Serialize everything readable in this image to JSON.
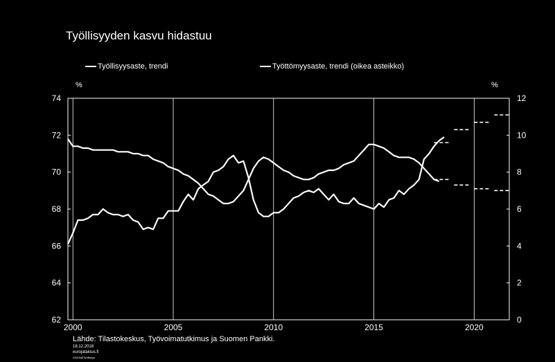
{
  "title": "Työllisyyden kasvu hidastuu",
  "legend": {
    "series1": "Työllisyysaste, trendi",
    "series2": "Työttömyysaste, trendi (oikea asteikko)"
  },
  "units": {
    "left": "%",
    "right": "%"
  },
  "footer": {
    "source": "Lähde: Tilastokeskus, Työvoimatutkimus ja Suomen Pankki.",
    "date": "18.12.2018",
    "site": "eurojatalous.fi",
    "ref": "24515@Työllisyys"
  },
  "chart_data": {
    "type": "line",
    "xlim": [
      1999.75,
      2021.75
    ],
    "ylim_left": [
      62,
      74
    ],
    "ylim_right": [
      0,
      12
    ],
    "x_ticks": [
      "2000",
      "2005",
      "2010",
      "2015",
      "2020"
    ],
    "x_tick_values": [
      2000,
      2005,
      2010,
      2015,
      2020
    ],
    "y_left_ticks": [
      "62",
      "64",
      "66",
      "68",
      "70",
      "72",
      "74"
    ],
    "y_right_ticks": [
      "0",
      "2",
      "4",
      "6",
      "8",
      "10",
      "12"
    ],
    "grid": "vertical at 2000, 2005, 2010, 2015, 2020",
    "series": [
      {
        "name": "Työllisyysaste, trendi",
        "axis": "left",
        "x": [
          1999.75,
          2000.0,
          2000.25,
          2000.5,
          2000.75,
          2001.0,
          2001.25,
          2001.5,
          2001.75,
          2002.0,
          2002.25,
          2002.5,
          2002.75,
          2003.0,
          2003.25,
          2003.5,
          2003.75,
          2004.0,
          2004.25,
          2004.5,
          2004.75,
          2005.0,
          2005.25,
          2005.5,
          2005.75,
          2006.0,
          2006.25,
          2006.5,
          2006.75,
          2007.0,
          2007.25,
          2007.5,
          2007.75,
          2008.0,
          2008.25,
          2008.5,
          2008.75,
          2009.0,
          2009.25,
          2009.5,
          2009.75,
          2010.0,
          2010.25,
          2010.5,
          2010.75,
          2011.0,
          2011.25,
          2011.5,
          2011.75,
          2012.0,
          2012.25,
          2012.5,
          2012.75,
          2013.0,
          2013.25,
          2013.5,
          2013.75,
          2014.0,
          2014.25,
          2014.5,
          2014.75,
          2015.0,
          2015.25,
          2015.5,
          2015.75,
          2016.0,
          2016.25,
          2016.5,
          2016.75,
          2017.0,
          2017.25,
          2017.5,
          2017.75,
          2018.0,
          2018.25,
          2018.5
        ],
        "y": [
          66.1,
          66.7,
          67.4,
          67.4,
          67.5,
          67.7,
          67.7,
          68.0,
          67.8,
          67.7,
          67.7,
          67.6,
          67.7,
          67.4,
          67.3,
          66.9,
          67.0,
          66.9,
          67.5,
          67.5,
          67.9,
          67.9,
          67.9,
          68.4,
          68.8,
          68.5,
          69.1,
          69.3,
          69.5,
          70.0,
          70.1,
          70.3,
          70.7,
          70.9,
          70.5,
          70.6,
          69.7,
          68.5,
          67.8,
          67.6,
          67.6,
          67.8,
          67.8,
          68.0,
          68.3,
          68.6,
          68.7,
          68.9,
          69.0,
          68.9,
          69.1,
          68.8,
          68.5,
          68.8,
          68.4,
          68.3,
          68.3,
          68.6,
          68.3,
          68.2,
          68.1,
          68.0,
          68.3,
          68.1,
          68.5,
          68.6,
          69.0,
          68.8,
          69.1,
          69.3,
          69.6,
          70.7,
          71.0,
          71.4,
          71.7,
          71.9
        ]
      },
      {
        "name": "Työttömyysaste, trendi (oikea asteikko)",
        "axis": "right",
        "x": [
          1999.75,
          2000.0,
          2000.25,
          2000.5,
          2000.75,
          2001.0,
          2001.25,
          2001.5,
          2001.75,
          2002.0,
          2002.25,
          2002.5,
          2002.75,
          2003.0,
          2003.25,
          2003.5,
          2003.75,
          2004.0,
          2004.25,
          2004.5,
          2004.75,
          2005.0,
          2005.25,
          2005.5,
          2005.75,
          2006.0,
          2006.25,
          2006.5,
          2006.75,
          2007.0,
          2007.25,
          2007.5,
          2007.75,
          2008.0,
          2008.25,
          2008.5,
          2008.75,
          2009.0,
          2009.25,
          2009.5,
          2009.75,
          2010.0,
          2010.25,
          2010.5,
          2010.75,
          2011.0,
          2011.25,
          2011.5,
          2011.75,
          2012.0,
          2012.25,
          2012.5,
          2012.75,
          2013.0,
          2013.25,
          2013.5,
          2013.75,
          2014.0,
          2014.25,
          2014.5,
          2014.75,
          2015.0,
          2015.25,
          2015.5,
          2015.75,
          2016.0,
          2016.25,
          2016.5,
          2016.75,
          2017.0,
          2017.25,
          2017.5,
          2017.75,
          2018.0,
          2018.25
        ],
        "y": [
          9.8,
          9.4,
          9.4,
          9.3,
          9.3,
          9.2,
          9.2,
          9.2,
          9.2,
          9.2,
          9.1,
          9.1,
          9.1,
          9.0,
          9.0,
          8.9,
          8.9,
          8.7,
          8.6,
          8.5,
          8.3,
          8.2,
          8.1,
          7.9,
          7.8,
          7.6,
          7.4,
          7.1,
          6.8,
          6.7,
          6.5,
          6.3,
          6.3,
          6.4,
          6.7,
          7.0,
          7.6,
          8.2,
          8.6,
          8.8,
          8.7,
          8.5,
          8.3,
          8.1,
          8.0,
          7.8,
          7.7,
          7.6,
          7.6,
          7.7,
          7.9,
          8.0,
          8.1,
          8.1,
          8.2,
          8.4,
          8.5,
          8.6,
          8.9,
          9.2,
          9.5,
          9.5,
          9.4,
          9.3,
          9.1,
          8.9,
          8.8,
          8.8,
          8.8,
          8.7,
          8.5,
          8.2,
          7.9,
          7.6,
          7.5
        ]
      }
    ],
    "forecasts": [
      {
        "axis": "left",
        "segments": [
          [
            2018.0,
            2018.75,
            71.6
          ],
          [
            2019.0,
            2019.75,
            72.3
          ],
          [
            2020.0,
            2020.75,
            72.7
          ],
          [
            2021.0,
            2021.75,
            73.1
          ]
        ]
      },
      {
        "axis": "right",
        "segments": [
          [
            2018.0,
            2018.75,
            7.6
          ],
          [
            2019.0,
            2019.75,
            7.3
          ],
          [
            2020.0,
            2020.75,
            7.1
          ],
          [
            2021.0,
            2021.75,
            7.0
          ]
        ]
      }
    ]
  }
}
